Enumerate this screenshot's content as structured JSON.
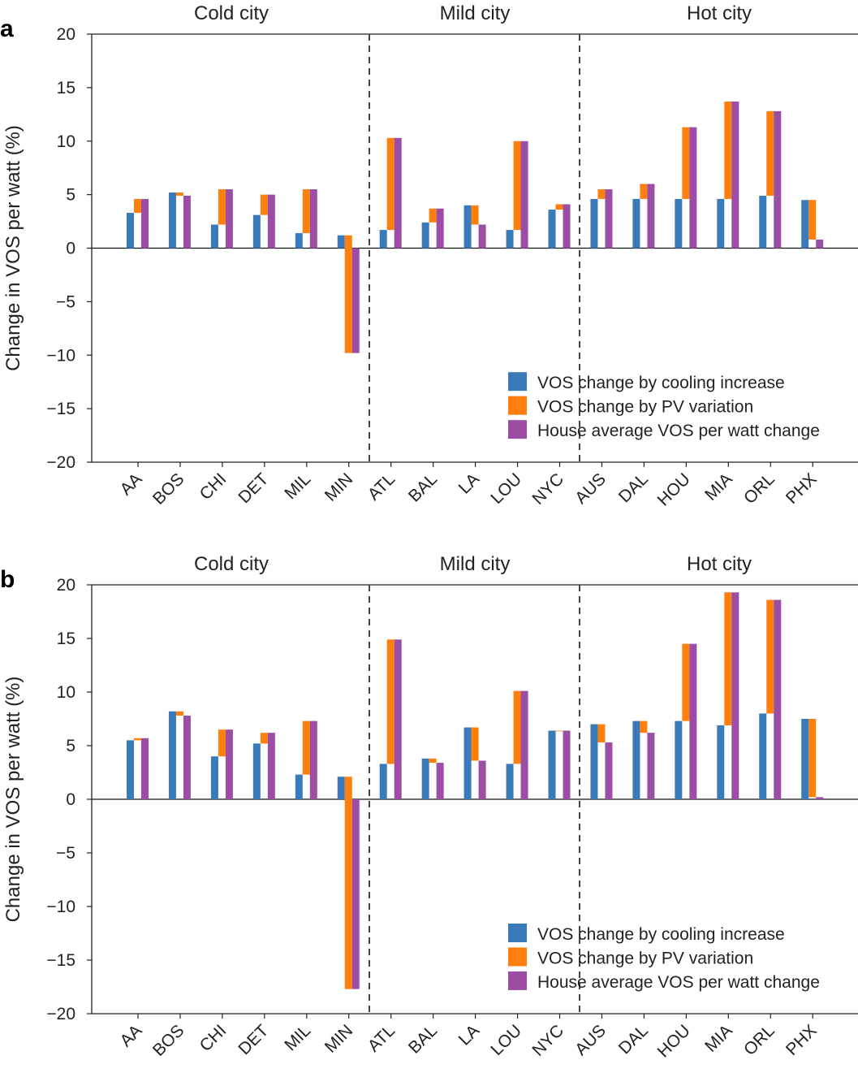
{
  "chart_data": [
    {
      "panel_label": "a",
      "type": "bar",
      "ylabel": "Change in VOS per watt (%)",
      "ylim": [
        -20,
        20
      ],
      "yticks": [
        20,
        15,
        10,
        5,
        0,
        -5,
        -10,
        -15,
        -20
      ],
      "groups": [
        "Cold city",
        "Mild city",
        "Hot city"
      ],
      "categories": [
        "AA",
        "BOS",
        "CHI",
        "DET",
        "MIL",
        "MIN",
        "ATL",
        "BAL",
        "LA",
        "LOU",
        "NYC",
        "AUS",
        "DAL",
        "HOU",
        "MIA",
        "ORL",
        "PHX"
      ],
      "series": [
        {
          "name": "VOS change by cooling increase",
          "color": "#3a7ab8",
          "values": [
            3.3,
            5.2,
            2.2,
            3.1,
            1.4,
            1.2,
            1.7,
            2.4,
            4.0,
            1.7,
            3.6,
            4.6,
            4.6,
            4.6,
            4.6,
            4.9,
            4.5
          ]
        },
        {
          "name": "VOS change by PV variation",
          "color": "#ff7f0e",
          "values": [
            1.3,
            -0.3,
            3.3,
            1.9,
            4.1,
            -11.0,
            8.6,
            1.3,
            -1.8,
            8.3,
            0.5,
            0.9,
            1.4,
            6.7,
            9.1,
            7.9,
            -3.7
          ]
        },
        {
          "name": "House average VOS per watt change",
          "color": "#9b4ea3",
          "values": [
            4.6,
            4.9,
            5.5,
            5.0,
            5.5,
            -9.8,
            10.3,
            3.7,
            2.2,
            10.0,
            4.1,
            5.5,
            6.0,
            11.3,
            13.7,
            12.8,
            0.8
          ]
        }
      ],
      "legend_position": "lower-right"
    },
    {
      "panel_label": "b",
      "type": "bar",
      "ylabel": "Change in VOS per watt (%)",
      "ylim": [
        -20,
        20
      ],
      "yticks": [
        20,
        15,
        10,
        5,
        0,
        -5,
        -10,
        -15,
        -20
      ],
      "groups": [
        "Cold city",
        "Mild city",
        "Hot city"
      ],
      "categories": [
        "AA",
        "BOS",
        "CHI",
        "DET",
        "MIL",
        "MIN",
        "ATL",
        "BAL",
        "LA",
        "LOU",
        "NYC",
        "AUS",
        "DAL",
        "HOU",
        "MIA",
        "ORL",
        "PHX"
      ],
      "series": [
        {
          "name": "VOS change by cooling increase",
          "color": "#3a7ab8",
          "values": [
            5.5,
            8.2,
            4.0,
            5.2,
            2.3,
            2.1,
            3.3,
            3.8,
            6.7,
            3.3,
            6.4,
            7.0,
            7.3,
            7.3,
            6.9,
            8.0,
            7.5
          ]
        },
        {
          "name": "VOS change by PV variation",
          "color": "#ff7f0e",
          "values": [
            0.2,
            -0.4,
            2.5,
            1.0,
            5.0,
            -19.8,
            11.6,
            -0.4,
            -3.1,
            6.8,
            0.0,
            -1.7,
            -1.1,
            7.2,
            12.4,
            10.6,
            -7.3
          ]
        },
        {
          "name": "House average VOS per watt change",
          "color": "#9b4ea3",
          "values": [
            5.7,
            7.8,
            6.5,
            6.2,
            7.3,
            -17.7,
            14.9,
            3.4,
            3.6,
            10.1,
            6.4,
            5.3,
            6.2,
            14.5,
            19.3,
            18.6,
            0.2
          ]
        }
      ],
      "legend_position": "lower-right"
    }
  ]
}
